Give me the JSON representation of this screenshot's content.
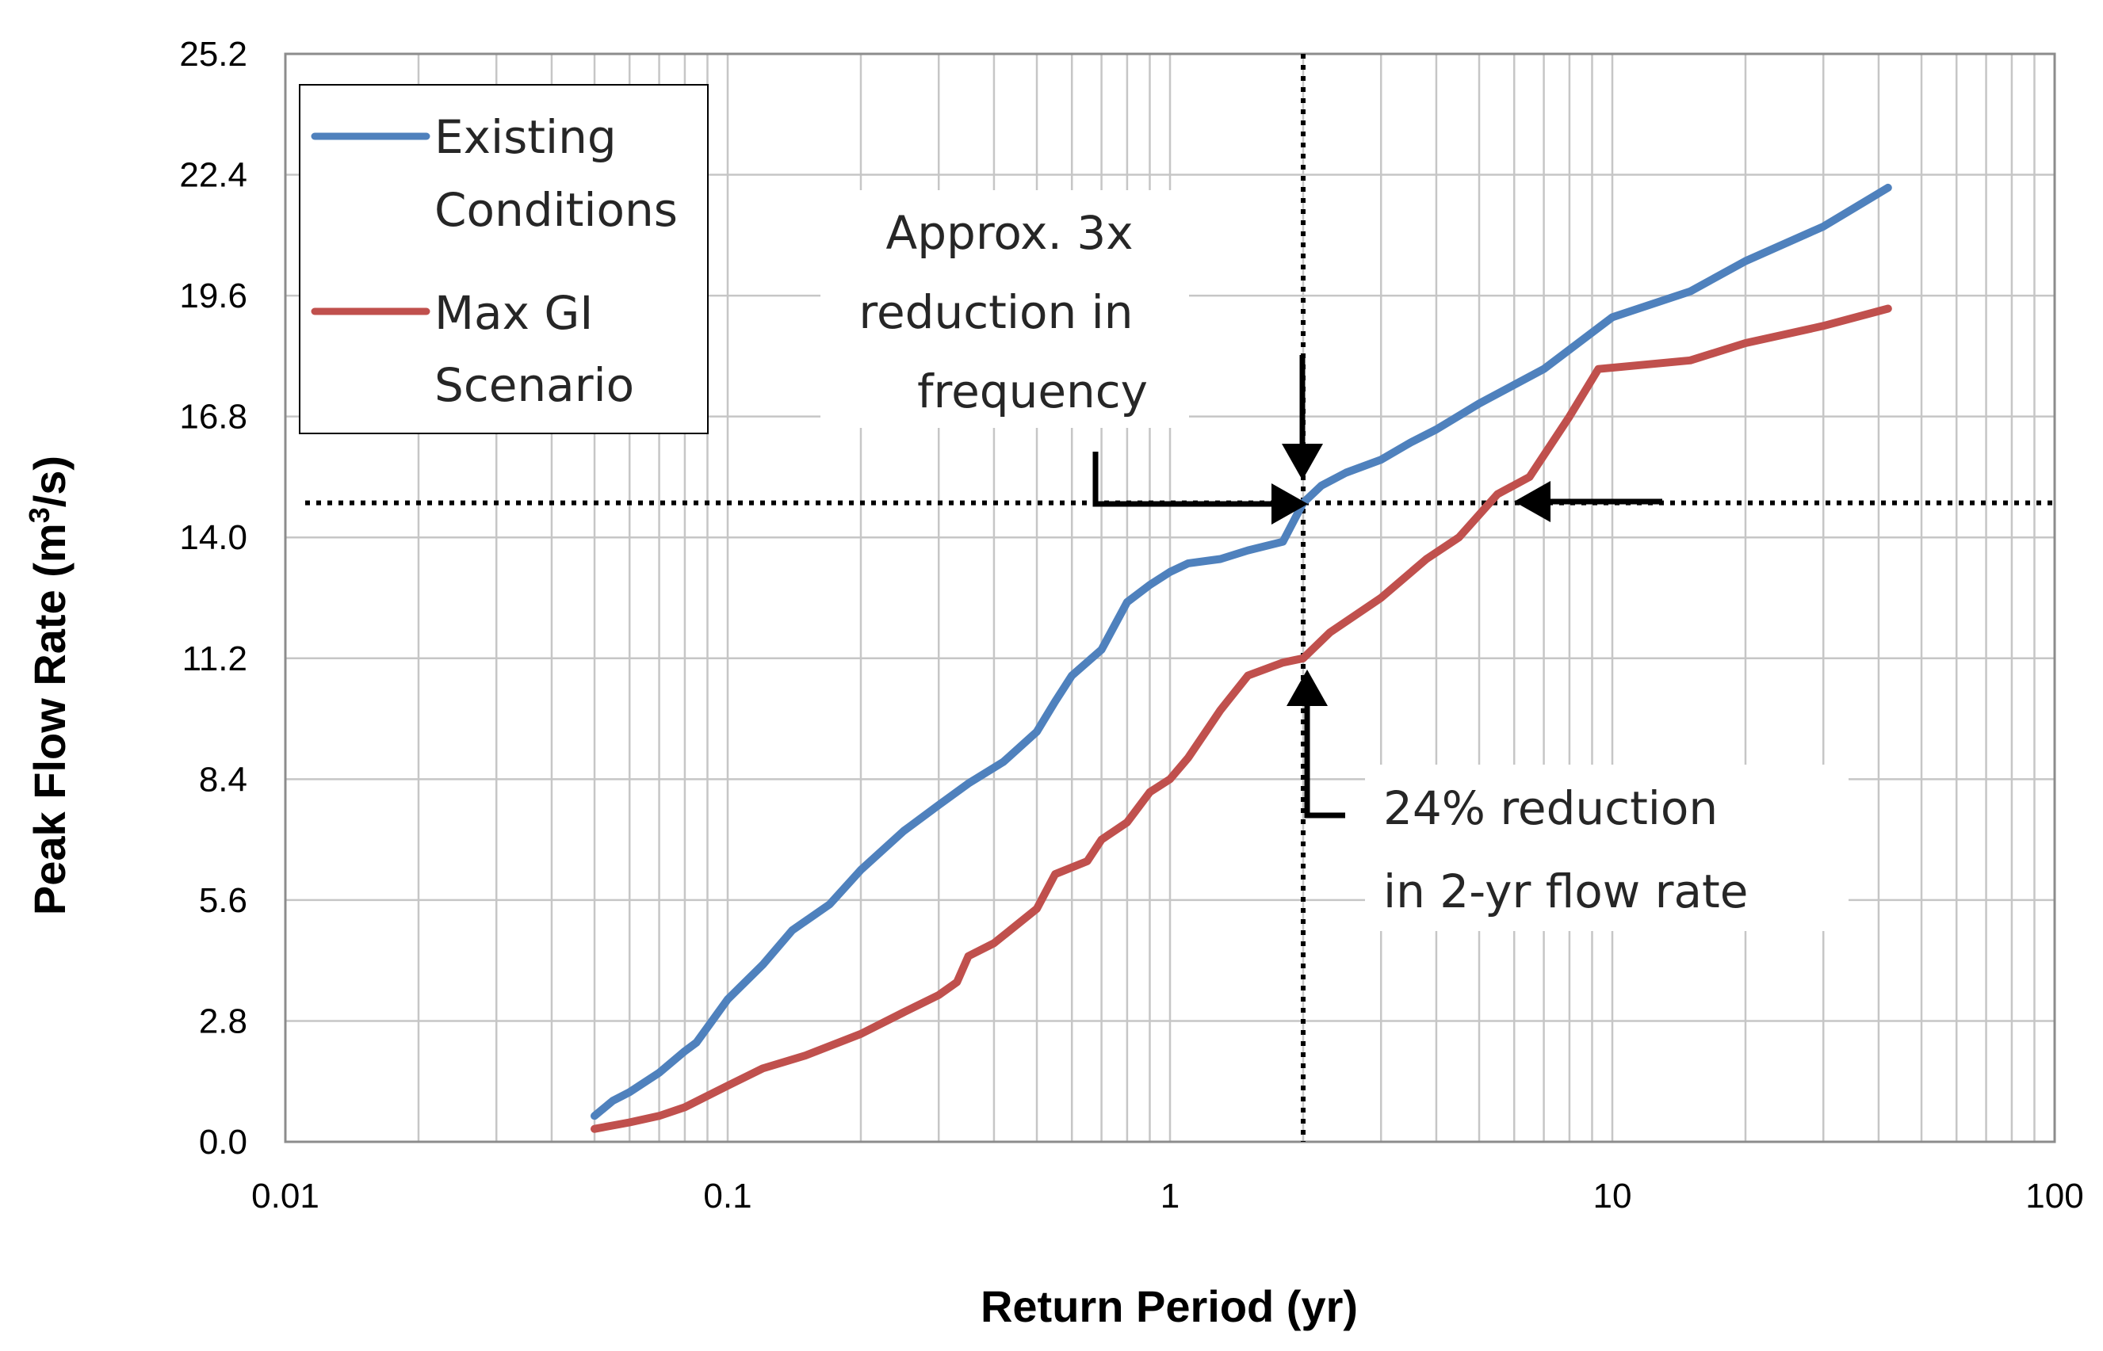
{
  "chart_data": {
    "type": "line",
    "xlabel": "Return Period (yr)",
    "ylabel_main": "Peak Flow Rate (m",
    "ylabel_sup": "3",
    "ylabel_tail": "/s)",
    "x_scale": "log",
    "xlim": [
      0.01,
      100
    ],
    "ylim": [
      0,
      25.2
    ],
    "grid": true,
    "x_ticks": [
      0.01,
      0.1,
      1,
      10,
      100
    ],
    "x_tick_labels": [
      "0.01",
      "0.1",
      "1",
      "10",
      "100"
    ],
    "y_ticks": [
      0,
      2.8,
      5.6,
      8.4,
      11.2,
      14.0,
      16.8,
      19.6,
      22.4,
      25.2
    ],
    "y_tick_labels": [
      "0.0",
      "2.8",
      "5.6",
      "8.4",
      "11.2",
      "14.0",
      "16.8",
      "19.6",
      "22.4",
      "25.2"
    ],
    "legend_position": "top-left",
    "series": [
      {
        "name_lines": [
          "Existing",
          "Conditions"
        ],
        "color": "#4F81BD",
        "points": [
          [
            0.05,
            0.6
          ],
          [
            0.055,
            0.95
          ],
          [
            0.06,
            1.15
          ],
          [
            0.07,
            1.6
          ],
          [
            0.08,
            2.1
          ],
          [
            0.085,
            2.3
          ],
          [
            0.1,
            3.3
          ],
          [
            0.12,
            4.1
          ],
          [
            0.14,
            4.9
          ],
          [
            0.17,
            5.5
          ],
          [
            0.2,
            6.3
          ],
          [
            0.25,
            7.2
          ],
          [
            0.3,
            7.8
          ],
          [
            0.35,
            8.3
          ],
          [
            0.42,
            8.8
          ],
          [
            0.5,
            9.5
          ],
          [
            0.55,
            10.2
          ],
          [
            0.6,
            10.8
          ],
          [
            0.7,
            11.4
          ],
          [
            0.8,
            12.5
          ],
          [
            0.9,
            12.9
          ],
          [
            1.0,
            13.2
          ],
          [
            1.1,
            13.4
          ],
          [
            1.3,
            13.5
          ],
          [
            1.5,
            13.7
          ],
          [
            1.8,
            13.9
          ],
          [
            2.0,
            14.8
          ],
          [
            2.2,
            15.2
          ],
          [
            2.5,
            15.5
          ],
          [
            3.0,
            15.8
          ],
          [
            3.5,
            16.2
          ],
          [
            4.0,
            16.5
          ],
          [
            5.0,
            17.1
          ],
          [
            7.0,
            17.9
          ],
          [
            10.0,
            19.1
          ],
          [
            15.0,
            19.7
          ],
          [
            20.0,
            20.4
          ],
          [
            30.0,
            21.2
          ],
          [
            42.0,
            22.1
          ]
        ]
      },
      {
        "name_lines": [
          "Max GI",
          "Scenario"
        ],
        "color": "#C0504D",
        "points": [
          [
            0.05,
            0.3
          ],
          [
            0.06,
            0.45
          ],
          [
            0.07,
            0.6
          ],
          [
            0.08,
            0.8
          ],
          [
            0.1,
            1.3
          ],
          [
            0.12,
            1.7
          ],
          [
            0.15,
            2.0
          ],
          [
            0.2,
            2.5
          ],
          [
            0.25,
            3.0
          ],
          [
            0.3,
            3.4
          ],
          [
            0.33,
            3.7
          ],
          [
            0.35,
            4.3
          ],
          [
            0.4,
            4.6
          ],
          [
            0.5,
            5.4
          ],
          [
            0.55,
            6.2
          ],
          [
            0.65,
            6.5
          ],
          [
            0.7,
            7.0
          ],
          [
            0.8,
            7.4
          ],
          [
            0.9,
            8.1
          ],
          [
            1.0,
            8.4
          ],
          [
            1.1,
            8.9
          ],
          [
            1.3,
            10.0
          ],
          [
            1.5,
            10.8
          ],
          [
            1.8,
            11.1
          ],
          [
            2.0,
            11.2
          ],
          [
            2.3,
            11.8
          ],
          [
            3.0,
            12.6
          ],
          [
            3.8,
            13.5
          ],
          [
            4.5,
            14.0
          ],
          [
            5.5,
            15.0
          ],
          [
            6.5,
            15.4
          ],
          [
            8.0,
            16.8
          ],
          [
            9.3,
            17.9
          ],
          [
            15.0,
            18.1
          ],
          [
            20.0,
            18.5
          ],
          [
            30.0,
            18.9
          ],
          [
            42.0,
            19.3
          ]
        ]
      }
    ],
    "reference_lines": {
      "horizontal_y": 14.8,
      "vertical_x": 2.0
    },
    "annotations": [
      {
        "lines": [
          "Approx. 3x",
          "reduction in",
          "frequency"
        ]
      },
      {
        "lines": [
          "24% reduction",
          "in 2-yr flow rate"
        ]
      }
    ]
  }
}
